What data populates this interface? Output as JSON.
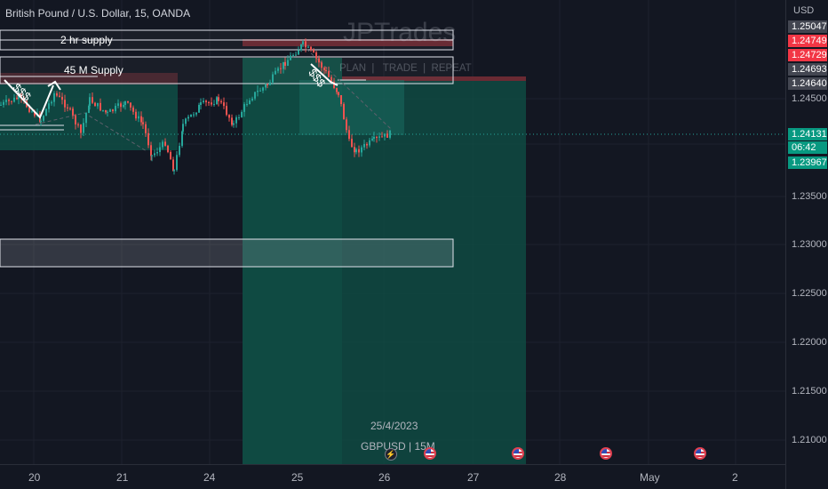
{
  "header": {
    "symbol_line": "British Pound / U.S. Dollar, 15, OANDA"
  },
  "watermark": {
    "brand": "JPTrades",
    "tagline": "PLAN  |   TRADE  |  REPEAT"
  },
  "annotations": {
    "supply_2hr": "2 hr supply",
    "supply_45m": "45 M Supply",
    "liquidity_left": "$$$",
    "liquidity_right": "$$$",
    "date": "25/4/2023",
    "symbol_tf": "GBPUSD  |  15M"
  },
  "price_axis": {
    "currency": "USD",
    "labels": [
      "1.24500",
      "1.23500",
      "1.23000",
      "1.22500",
      "1.22000",
      "1.21500",
      "1.21000"
    ],
    "badges": [
      {
        "value": "1.25047",
        "bg": "#434651"
      },
      {
        "value": "1.24749",
        "bg": "#f23645"
      },
      {
        "value": "1.24729",
        "bg": "#f23645"
      },
      {
        "value": "1.24693",
        "bg": "#434651"
      },
      {
        "value": "1.24640",
        "bg": "#434651"
      },
      {
        "value": "1.24131",
        "bg": "#089981"
      },
      {
        "value": "06:42",
        "bg": "#089981"
      },
      {
        "value": "1.23967",
        "bg": "#089981"
      }
    ]
  },
  "time_axis": {
    "labels": [
      "20",
      "21",
      "24",
      "25",
      "26",
      "27",
      "28",
      "May",
      "2"
    ]
  },
  "colors": {
    "background": "#131722",
    "up": "#26a69a",
    "down": "#ef5350",
    "grid": "#1e222d",
    "zone_green": "#0f4d45",
    "zone_red": "#3a1f26"
  }
}
